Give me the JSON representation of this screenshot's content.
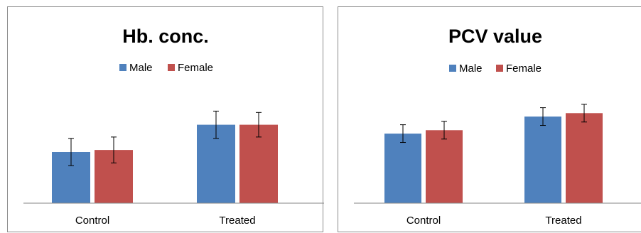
{
  "chart_data": [
    {
      "type": "bar",
      "title": "Hb. conc.",
      "categories": [
        "Control",
        "Treated"
      ],
      "series": [
        {
          "name": "Male",
          "values": [
            7.5,
            11.5
          ],
          "errors": [
            2.0,
            2.0
          ]
        },
        {
          "name": "Female",
          "values": [
            7.8,
            11.5
          ],
          "errors": [
            1.9,
            1.8
          ]
        }
      ],
      "xlabel": "",
      "ylabel": "",
      "ylim": [
        0,
        20
      ],
      "grid": false,
      "legend": "top-center"
    },
    {
      "type": "bar",
      "title": "PCV value",
      "categories": [
        "Control",
        "Treated"
      ],
      "series": [
        {
          "name": "Male",
          "values": [
            10.2,
            12.7
          ],
          "errors": [
            1.3,
            1.3
          ]
        },
        {
          "name": "Female",
          "values": [
            10.7,
            13.2
          ],
          "errors": [
            1.3,
            1.3
          ]
        }
      ],
      "xlabel": "",
      "ylabel": "",
      "ylim": [
        0,
        20
      ],
      "grid": false,
      "legend": "top-center"
    }
  ],
  "colors": {
    "male": "#4f81bd",
    "female": "#c0504d",
    "axis": "#868686"
  }
}
